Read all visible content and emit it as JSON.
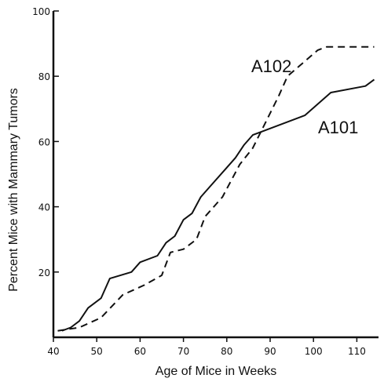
{
  "chart_data": {
    "type": "line",
    "title": "",
    "xlabel": "Age of Mice in Weeks",
    "ylabel": "Percent Mice with Mammary Tumors",
    "xlim": [
      40,
      115
    ],
    "ylim": [
      0,
      100
    ],
    "x_ticks": [
      40,
      50,
      60,
      70,
      80,
      90,
      100,
      110
    ],
    "x_tick_labels": [
      "40",
      "50",
      "60",
      "70",
      "80",
      "90",
      "100",
      "110"
    ],
    "y_ticks": [
      20,
      40,
      60,
      80,
      100
    ],
    "y_tick_labels": [
      "20",
      "40",
      "60",
      "80",
      "100"
    ],
    "grid": false,
    "legend": "none (series labeled directly on the curves)",
    "series": [
      {
        "name": "A101",
        "line_style": "solid",
        "color": "#111111",
        "x": [
          42,
          44,
          46,
          48,
          51,
          53,
          58,
          60,
          64,
          66,
          68,
          70,
          72,
          74,
          76,
          80,
          82,
          84,
          86,
          88,
          98,
          104,
          112,
          114
        ],
        "y": [
          2,
          3,
          5,
          9,
          12,
          18,
          20,
          23,
          25,
          29,
          31,
          36,
          38,
          43,
          46,
          52,
          55,
          59,
          62,
          63,
          68,
          75,
          77,
          79
        ]
      },
      {
        "name": "A102",
        "line_style": "dashed",
        "color": "#111111",
        "x": [
          41,
          46,
          51,
          56,
          61,
          65,
          67,
          70,
          73,
          75,
          79,
          83,
          86,
          89,
          92,
          94,
          101,
          103,
          114
        ],
        "y": [
          2,
          3,
          6,
          13,
          16,
          19,
          26,
          27,
          30,
          37,
          43,
          53,
          58,
          66,
          74,
          80,
          88,
          89,
          89
        ]
      }
    ]
  }
}
